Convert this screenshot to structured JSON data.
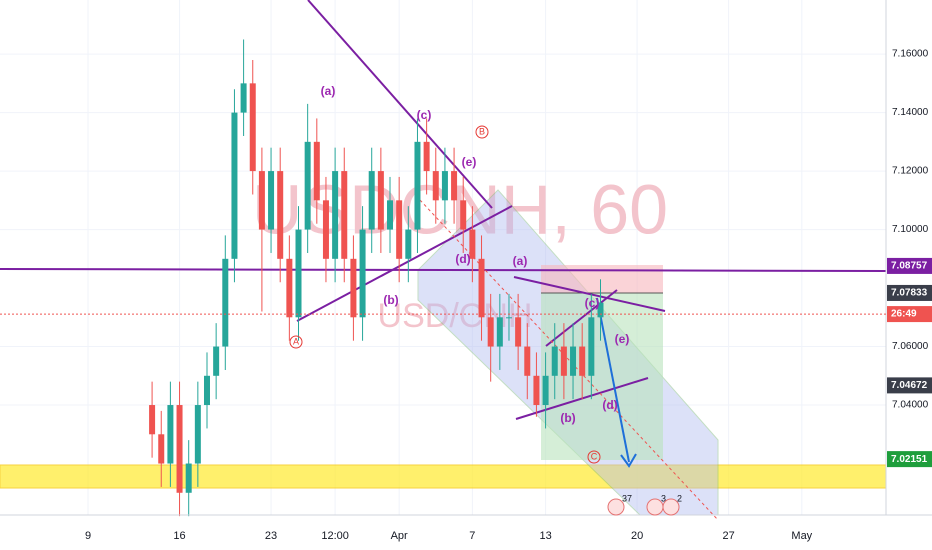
{
  "chart_data": {
    "type": "candlestick",
    "watermark": "USDCNH, 60",
    "watermark_sub": "USD/CNH",
    "up_color": "#26a69a",
    "down_color": "#ef5350",
    "xlim": [
      -4.81,
      43.6
    ],
    "ylim": [
      7.0024,
      7.1785
    ],
    "xticks": [
      {
        "value": 0,
        "label": "9"
      },
      {
        "value": 5,
        "label": "16"
      },
      {
        "value": 10,
        "label": "23"
      },
      {
        "value": 13.5,
        "label": "12:00"
      },
      {
        "value": 17,
        "label": "Apr"
      },
      {
        "value": 21,
        "label": "7"
      },
      {
        "value": 25,
        "label": "13"
      },
      {
        "value": 30,
        "label": "20"
      },
      {
        "value": 35,
        "label": "27"
      },
      {
        "value": 39,
        "label": "May"
      }
    ],
    "yticks": [
      {
        "value": 7.04,
        "label": "7.04000"
      },
      {
        "value": 7.06,
        "label": "7.06000"
      },
      {
        "value": 7.1,
        "label": "7.10000"
      },
      {
        "value": 7.12,
        "label": "7.12000"
      },
      {
        "value": 7.14,
        "label": "7.14000"
      },
      {
        "value": 7.16,
        "label": "7.16000"
      }
    ],
    "grid": true,
    "x": [
      3.5,
      4,
      4.5,
      5,
      5.5,
      6,
      6.5,
      7,
      7.5,
      8,
      8.5,
      9,
      9.5,
      10,
      10.5,
      11,
      11.5,
      12,
      12.5,
      13,
      13.5,
      14,
      14.5,
      15,
      15.5,
      16,
      16.5,
      17,
      17.5,
      18,
      18.5,
      19,
      19.5,
      20,
      20.5,
      21,
      21.5,
      22,
      22.5,
      23,
      23.5,
      24,
      24.5,
      25,
      25.5,
      26,
      26.5,
      27,
      27.5,
      28
    ],
    "open": [
      7.04,
      7.03,
      7.02,
      7.04,
      7.01,
      7.02,
      7.04,
      7.05,
      7.06,
      7.09,
      7.14,
      7.15,
      7.12,
      7.1,
      7.12,
      7.09,
      7.07,
      7.1,
      7.13,
      7.11,
      7.09,
      7.12,
      7.09,
      7.07,
      7.1,
      7.12,
      7.1,
      7.11,
      7.09,
      7.1,
      7.13,
      7.12,
      7.11,
      7.12,
      7.11,
      7.1,
      7.09,
      7.07,
      7.06,
      7.07,
      7.07,
      7.06,
      7.05,
      7.04,
      7.05,
      7.06,
      7.05,
      7.06,
      7.05,
      7.07
    ],
    "high": [
      7.048,
      7.038,
      7.048,
      7.048,
      7.028,
      7.048,
      7.058,
      7.068,
      7.098,
      7.148,
      7.165,
      7.158,
      7.128,
      7.128,
      7.128,
      7.098,
      7.108,
      7.143,
      7.138,
      7.118,
      7.128,
      7.128,
      7.098,
      7.108,
      7.128,
      7.128,
      7.118,
      7.118,
      7.108,
      7.138,
      7.138,
      7.128,
      7.128,
      7.128,
      7.118,
      7.108,
      7.098,
      7.078,
      7.078,
      7.078,
      7.078,
      7.068,
      7.058,
      7.058,
      7.068,
      7.068,
      7.068,
      7.068,
      7.078,
      7.083
    ],
    "low": [
      7.022,
      7.012,
      7.012,
      7.002,
      7.002,
      7.012,
      7.032,
      7.042,
      7.052,
      7.082,
      7.132,
      7.112,
      7.072,
      7.092,
      7.082,
      7.062,
      7.062,
      7.092,
      7.102,
      7.082,
      7.082,
      7.082,
      7.062,
      7.062,
      7.092,
      7.092,
      7.092,
      7.082,
      7.082,
      7.092,
      7.112,
      7.102,
      7.102,
      7.102,
      7.092,
      7.082,
      7.062,
      7.048,
      7.052,
      7.062,
      7.052,
      7.042,
      7.036,
      7.032,
      7.042,
      7.042,
      7.042,
      7.042,
      7.042,
      7.062
    ],
    "close": [
      7.03,
      7.02,
      7.04,
      7.01,
      7.02,
      7.04,
      7.05,
      7.06,
      7.09,
      7.14,
      7.15,
      7.12,
      7.1,
      7.12,
      7.09,
      7.07,
      7.1,
      7.13,
      7.11,
      7.09,
      7.12,
      7.09,
      7.07,
      7.1,
      7.12,
      7.1,
      7.11,
      7.09,
      7.1,
      7.13,
      7.12,
      7.11,
      7.12,
      7.11,
      7.1,
      7.09,
      7.07,
      7.06,
      7.07,
      7.07,
      7.06,
      7.05,
      7.04,
      7.05,
      7.06,
      7.05,
      7.06,
      7.05,
      7.07,
      7.075
    ],
    "price_tags": [
      {
        "value": 7.08757,
        "color": "#7b1fa2"
      },
      {
        "value": 7.07833,
        "color": "#3a3e4a"
      },
      {
        "value": 7.0711,
        "label": "26:49",
        "color": "#ef5350"
      },
      {
        "value": 7.04672,
        "color": "#3a3e4a"
      },
      {
        "value": 7.02151,
        "color": "#1e9e3c"
      }
    ],
    "annotations": [
      "(a)",
      "(c)",
      "B",
      "(e)",
      "(d)",
      "(b)",
      "A",
      "(a)",
      "(c)",
      "(e)",
      "(d)",
      "(b)",
      "C"
    ],
    "events": [
      "37",
      "3",
      "2"
    ]
  }
}
